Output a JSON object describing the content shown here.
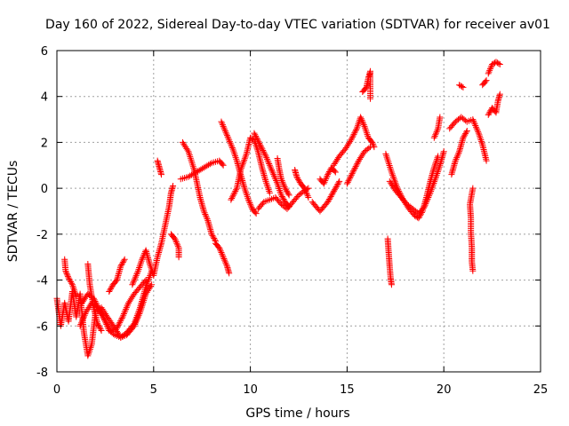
{
  "chart_data": {
    "type": "scatter",
    "title": "Day 160 of 2022, Sidereal Day-to-day VTEC variation (SDTVAR) for receiver av01",
    "xlabel": "GPS time / hours",
    "ylabel": "SDTVAR / TECUs",
    "xlim": [
      0,
      25
    ],
    "ylim": [
      -8,
      6
    ],
    "xticks": [
      0,
      5,
      10,
      15,
      20,
      25
    ],
    "yticks": [
      -8,
      -6,
      -4,
      -2,
      0,
      2,
      4,
      6
    ],
    "grid": true,
    "marker": "+",
    "color": "#ff0000",
    "series": [
      {
        "name": "SDTVAR",
        "segments": [
          [
            [
              0.0,
              -4.8
            ],
            [
              0.2,
              -6.0
            ],
            [
              0.4,
              -5.0
            ],
            [
              0.6,
              -5.8
            ],
            [
              0.8,
              -4.5
            ],
            [
              1.0,
              -5.6
            ],
            [
              1.2,
              -4.6
            ],
            [
              1.4,
              -6.3
            ],
            [
              1.6,
              -7.3
            ],
            [
              1.8,
              -6.8
            ],
            [
              2.0,
              -5.4
            ],
            [
              2.3,
              -5.2
            ],
            [
              2.6,
              -5.6
            ],
            [
              3.0,
              -6.1
            ],
            [
              3.3,
              -6.5
            ],
            [
              3.6,
              -6.4
            ],
            [
              4.0,
              -6.0
            ],
            [
              4.3,
              -5.4
            ],
            [
              4.6,
              -4.6
            ],
            [
              4.9,
              -4.2
            ]
          ],
          [
            [
              0.4,
              -3.1
            ],
            [
              0.45,
              -3.6
            ],
            [
              0.6,
              -3.9
            ],
            [
              0.8,
              -4.2
            ],
            [
              1.0,
              -4.7
            ]
          ],
          [
            [
              1.2,
              -6.0
            ],
            [
              1.5,
              -5.4
            ],
            [
              1.8,
              -5.0
            ],
            [
              2.1,
              -5.2
            ],
            [
              2.4,
              -5.6
            ],
            [
              2.7,
              -6.2
            ],
            [
              3.0,
              -6.4
            ],
            [
              3.3,
              -6.5
            ],
            [
              3.6,
              -6.3
            ],
            [
              4.0,
              -5.9
            ],
            [
              4.3,
              -5.2
            ],
            [
              4.6,
              -4.3
            ],
            [
              4.9,
              -3.6
            ]
          ],
          [
            [
              1.3,
              -5.0
            ],
            [
              1.6,
              -4.6
            ],
            [
              1.9,
              -4.8
            ],
            [
              2.2,
              -5.3
            ],
            [
              2.5,
              -5.8
            ],
            [
              2.8,
              -6.2
            ],
            [
              3.1,
              -6.1
            ],
            [
              3.4,
              -5.6
            ],
            [
              3.7,
              -5.0
            ],
            [
              4.0,
              -4.6
            ],
            [
              4.3,
              -4.3
            ],
            [
              4.6,
              -4.0
            ]
          ],
          [
            [
              1.6,
              -3.3
            ],
            [
              1.7,
              -4.2
            ],
            [
              1.9,
              -5.2
            ],
            [
              2.1,
              -5.9
            ],
            [
              2.3,
              -6.2
            ]
          ],
          [
            [
              2.7,
              -4.5
            ],
            [
              2.9,
              -4.2
            ],
            [
              3.1,
              -4.0
            ],
            [
              3.3,
              -3.4
            ],
            [
              3.5,
              -3.1
            ]
          ],
          [
            [
              3.9,
              -4.2
            ],
            [
              4.2,
              -3.6
            ],
            [
              4.4,
              -3.1
            ],
            [
              4.6,
              -2.7
            ],
            [
              4.8,
              -3.3
            ],
            [
              5.0,
              -3.8
            ],
            [
              5.2,
              -3.0
            ],
            [
              5.4,
              -2.4
            ],
            [
              5.6,
              -1.6
            ],
            [
              5.8,
              -0.8
            ],
            [
              5.9,
              -0.2
            ],
            [
              6.0,
              0.1
            ]
          ],
          [
            [
              5.2,
              1.2
            ],
            [
              5.3,
              0.9
            ],
            [
              5.4,
              0.6
            ]
          ],
          [
            [
              5.9,
              -2.0
            ],
            [
              6.1,
              -2.2
            ],
            [
              6.3,
              -2.6
            ],
            [
              6.3,
              -3.0
            ]
          ],
          [
            [
              6.5,
              2.0
            ],
            [
              6.8,
              1.6
            ],
            [
              7.1,
              0.8
            ],
            [
              7.4,
              -0.4
            ],
            [
              7.6,
              -1.0
            ],
            [
              7.8,
              -1.4
            ],
            [
              8.0,
              -2.0
            ],
            [
              8.2,
              -2.3
            ]
          ],
          [
            [
              6.4,
              0.4
            ],
            [
              6.8,
              0.5
            ],
            [
              7.2,
              0.7
            ],
            [
              7.6,
              0.9
            ],
            [
              8.0,
              1.1
            ],
            [
              8.4,
              1.2
            ],
            [
              8.6,
              1.0
            ]
          ],
          [
            [
              8.2,
              -2.4
            ],
            [
              8.4,
              -2.6
            ],
            [
              8.6,
              -3.0
            ],
            [
              8.8,
              -3.4
            ],
            [
              8.9,
              -3.7
            ]
          ],
          [
            [
              8.5,
              2.9
            ],
            [
              8.7,
              2.5
            ],
            [
              8.9,
              2.1
            ],
            [
              9.1,
              1.7
            ],
            [
              9.3,
              1.2
            ],
            [
              9.5,
              0.6
            ],
            [
              9.7,
              0.0
            ],
            [
              9.9,
              -0.5
            ],
            [
              10.1,
              -0.9
            ],
            [
              10.3,
              -1.1
            ]
          ],
          [
            [
              9.0,
              -0.5
            ],
            [
              9.3,
              0.0
            ],
            [
              9.5,
              0.8
            ],
            [
              9.8,
              1.5
            ],
            [
              10.0,
              2.2
            ],
            [
              10.2,
              2.1
            ],
            [
              10.4,
              1.6
            ],
            [
              10.6,
              0.9
            ],
            [
              10.8,
              0.3
            ],
            [
              11.0,
              -0.2
            ]
          ],
          [
            [
              10.2,
              2.4
            ],
            [
              10.5,
              1.9
            ],
            [
              10.8,
              1.4
            ],
            [
              11.0,
              1.0
            ],
            [
              11.2,
              0.6
            ],
            [
              11.4,
              0.2
            ],
            [
              11.6,
              -0.3
            ],
            [
              11.8,
              -0.6
            ],
            [
              12.0,
              -0.8
            ]
          ],
          [
            [
              10.4,
              -0.9
            ],
            [
              10.7,
              -0.6
            ],
            [
              11.0,
              -0.5
            ],
            [
              11.3,
              -0.4
            ],
            [
              11.6,
              -0.7
            ],
            [
              11.9,
              -0.9
            ],
            [
              12.2,
              -0.6
            ],
            [
              12.5,
              -0.3
            ],
            [
              12.8,
              -0.1
            ],
            [
              13.0,
              0.0
            ]
          ],
          [
            [
              11.4,
              1.3
            ],
            [
              11.5,
              0.8
            ],
            [
              11.6,
              0.4
            ],
            [
              11.8,
              0.0
            ],
            [
              12.0,
              -0.3
            ]
          ],
          [
            [
              12.3,
              0.8
            ],
            [
              12.4,
              0.5
            ],
            [
              12.6,
              0.2
            ],
            [
              12.8,
              0.0
            ],
            [
              13.0,
              -0.4
            ]
          ],
          [
            [
              13.2,
              -0.6
            ],
            [
              13.6,
              -1.0
            ],
            [
              14.0,
              -0.6
            ],
            [
              14.2,
              -0.3
            ],
            [
              14.4,
              0.0
            ],
            [
              14.6,
              0.3
            ]
          ],
          [
            [
              13.6,
              0.4
            ],
            [
              13.8,
              0.2
            ],
            [
              14.0,
              0.6
            ],
            [
              14.2,
              0.9
            ],
            [
              14.4,
              0.7
            ]
          ],
          [
            [
              14.3,
              1.0
            ],
            [
              14.6,
              1.4
            ],
            [
              14.9,
              1.7
            ],
            [
              15.2,
              2.1
            ],
            [
              15.5,
              2.6
            ],
            [
              15.7,
              3.1
            ],
            [
              15.9,
              2.7
            ],
            [
              16.1,
              2.2
            ],
            [
              16.3,
              2.0
            ],
            [
              16.4,
              1.8
            ]
          ],
          [
            [
              15.0,
              0.2
            ],
            [
              15.3,
              0.7
            ],
            [
              15.6,
              1.2
            ],
            [
              15.9,
              1.6
            ],
            [
              16.2,
              1.8
            ]
          ],
          [
            [
              15.8,
              4.2
            ],
            [
              16.0,
              4.4
            ],
            [
              16.1,
              4.8
            ],
            [
              16.2,
              5.1
            ],
            [
              16.2,
              3.9
            ]
          ],
          [
            [
              17.1,
              -2.2
            ],
            [
              17.15,
              -2.8
            ],
            [
              17.2,
              -3.4
            ],
            [
              17.25,
              -3.9
            ],
            [
              17.3,
              -4.2
            ]
          ],
          [
            [
              17.0,
              1.5
            ],
            [
              17.3,
              0.7
            ],
            [
              17.6,
              0.0
            ],
            [
              17.9,
              -0.5
            ],
            [
              18.2,
              -0.9
            ],
            [
              18.5,
              -1.2
            ],
            [
              18.7,
              -1.3
            ],
            [
              18.9,
              -1.0
            ],
            [
              19.1,
              -0.4
            ],
            [
              19.3,
              0.3
            ],
            [
              19.5,
              0.9
            ],
            [
              19.7,
              1.4
            ]
          ],
          [
            [
              17.2,
              0.3
            ],
            [
              17.5,
              -0.1
            ],
            [
              17.8,
              -0.4
            ],
            [
              18.1,
              -0.7
            ],
            [
              18.4,
              -0.9
            ],
            [
              18.7,
              -1.1
            ],
            [
              19.0,
              -0.8
            ],
            [
              19.3,
              -0.2
            ],
            [
              19.6,
              0.5
            ],
            [
              19.8,
              1.0
            ],
            [
              20.0,
              1.6
            ]
          ],
          [
            [
              19.5,
              2.2
            ],
            [
              19.7,
              2.6
            ],
            [
              19.8,
              3.1
            ]
          ],
          [
            [
              20.3,
              2.6
            ],
            [
              20.6,
              2.9
            ],
            [
              20.9,
              3.1
            ],
            [
              21.2,
              2.9
            ],
            [
              21.5,
              3.0
            ],
            [
              21.8,
              2.4
            ],
            [
              22.0,
              1.9
            ],
            [
              22.2,
              1.2
            ]
          ],
          [
            [
              20.4,
              0.6
            ],
            [
              20.6,
              1.2
            ],
            [
              20.8,
              1.6
            ],
            [
              21.0,
              2.2
            ],
            [
              21.2,
              2.5
            ]
          ],
          [
            [
              20.8,
              4.5
            ],
            [
              21.0,
              4.4
            ]
          ],
          [
            [
              21.5,
              0.0
            ],
            [
              21.35,
              -0.7
            ],
            [
              21.4,
              -1.3
            ],
            [
              21.4,
              -1.9
            ],
            [
              21.45,
              -2.6
            ],
            [
              21.45,
              -3.2
            ],
            [
              21.5,
              -3.6
            ]
          ],
          [
            [
              22.0,
              4.5
            ],
            [
              22.2,
              4.7
            ]
          ],
          [
            [
              22.3,
              3.2
            ],
            [
              22.5,
              3.5
            ],
            [
              22.7,
              3.3
            ],
            [
              22.8,
              3.8
            ],
            [
              22.9,
              4.1
            ]
          ],
          [
            [
              22.3,
              5.0
            ],
            [
              22.5,
              5.4
            ],
            [
              22.7,
              5.5
            ],
            [
              22.9,
              5.4
            ]
          ]
        ]
      }
    ]
  }
}
